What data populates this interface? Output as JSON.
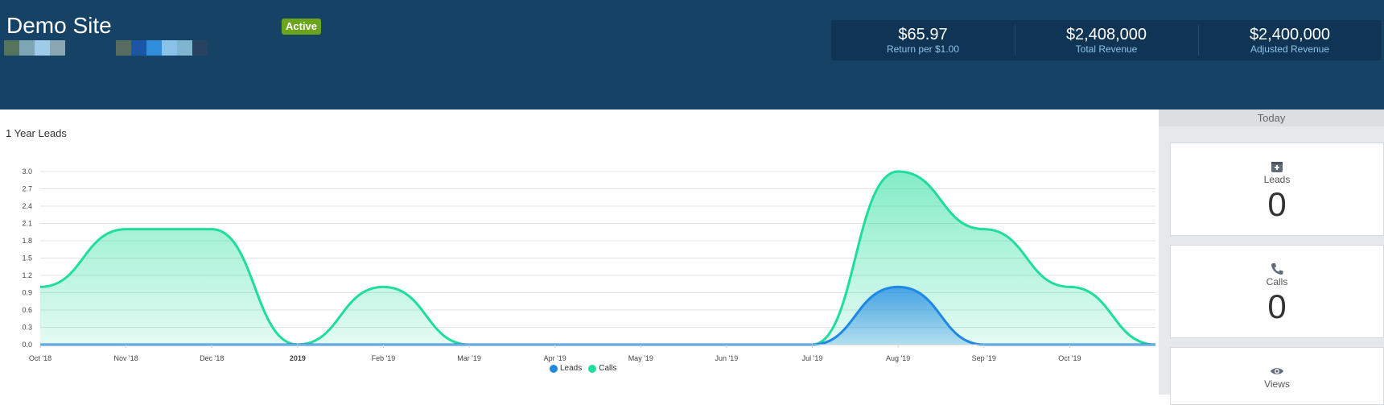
{
  "header": {
    "site_title": "Demo Site",
    "status": "Active",
    "swatches_left": [
      "#56735e",
      "#7fa7b3",
      "#9ecbe8",
      "#8aa6b3"
    ],
    "swatches_right": [
      "#586b60",
      "#1b55a6",
      "#2f8ddc",
      "#88c2e8",
      "#7fb5cf",
      "#2a4261"
    ],
    "stats": [
      {
        "value": "$65.97",
        "label": "Return per $1.00"
      },
      {
        "value": "$2,408,000",
        "label": "Total Revenue"
      },
      {
        "value": "$2,400,000",
        "label": "Adjusted Revenue"
      }
    ]
  },
  "chart_title": "1 Year Leads",
  "legend": {
    "leads": "Leads",
    "calls": "Calls"
  },
  "colors": {
    "header_bg": "#164266",
    "badge": "#6aa51c",
    "leads": "#1e88e5",
    "calls": "#1fdd9a"
  },
  "chart_data": {
    "type": "area",
    "categories": [
      "Oct '18",
      "Nov '18",
      "Dec '18",
      "2019",
      "Feb '19",
      "Mar '19",
      "Apr '19",
      "May '19",
      "Jun '19",
      "Jul '19",
      "Aug '19",
      "Sep '19",
      "Oct '19",
      ""
    ],
    "series": [
      {
        "name": "Calls",
        "values": [
          1,
          2,
          2,
          0,
          1,
          0,
          0,
          0,
          0,
          0,
          3,
          2,
          1,
          0
        ]
      },
      {
        "name": "Leads",
        "values": [
          0,
          0,
          0,
          0,
          0,
          0,
          0,
          0,
          0,
          0,
          1,
          0,
          0,
          0
        ]
      }
    ],
    "ylim": [
      0,
      3
    ],
    "yticks": [
      "0.0",
      "0.3",
      "0.6",
      "0.9",
      "1.2",
      "1.5",
      "1.8",
      "2.1",
      "2.4",
      "2.7",
      "3.0"
    ],
    "grid": true,
    "legend_position": "bottom"
  },
  "side": {
    "today_label": "Today",
    "cards": [
      {
        "label": "Leads",
        "value": "0",
        "icon": "inbox-icon"
      },
      {
        "label": "Calls",
        "value": "0",
        "icon": "phone-icon"
      },
      {
        "label": "Views",
        "value": "",
        "icon": "eye-icon"
      }
    ]
  }
}
